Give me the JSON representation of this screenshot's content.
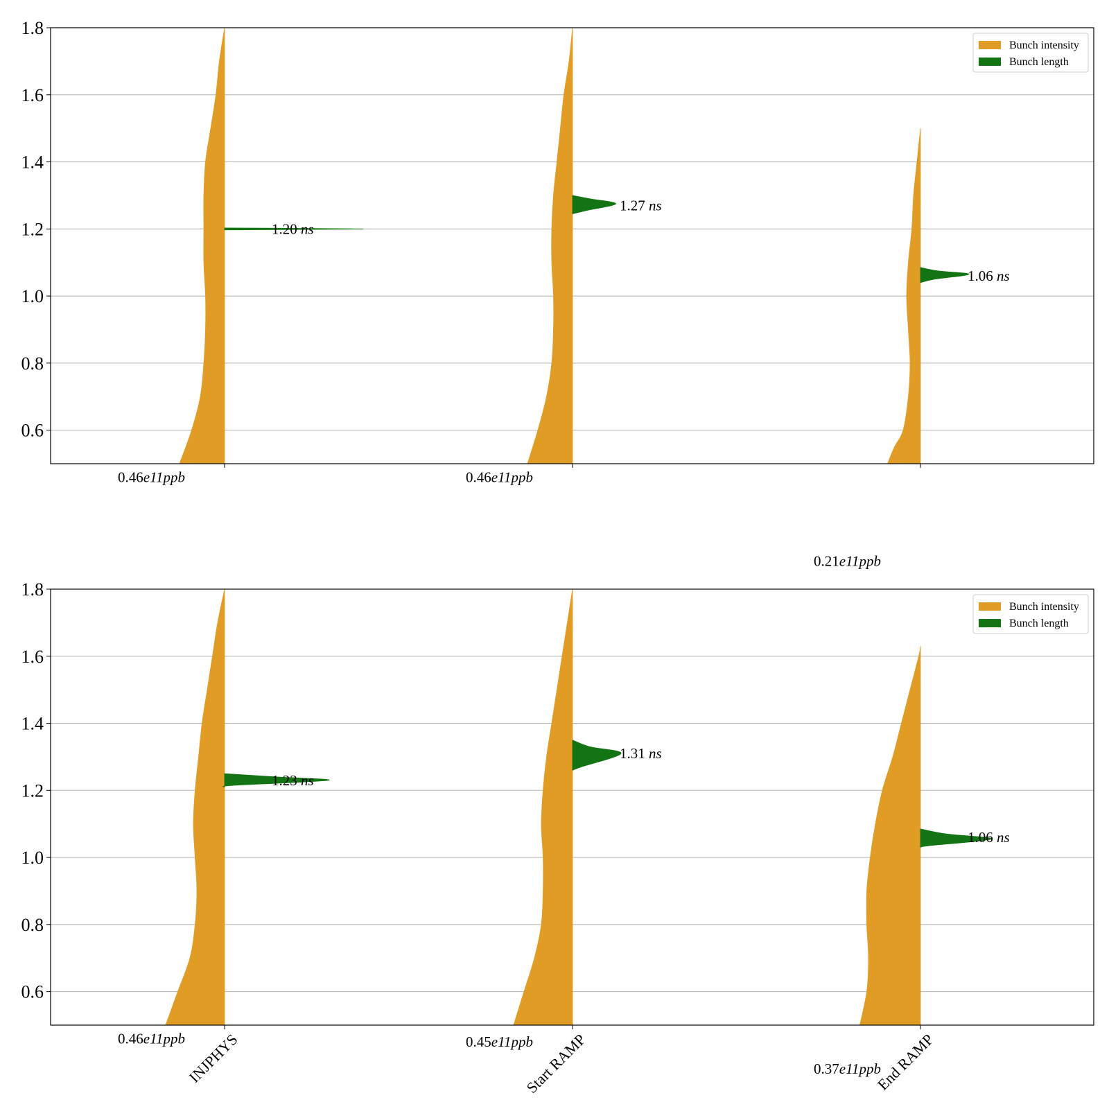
{
  "colors": {
    "intensity": "#e09c24",
    "length": "#127412",
    "grid": "#b0b0b0",
    "axis": "#000000"
  },
  "chart_data": [
    {
      "type": "violin",
      "ylim": [
        0.5,
        1.8
      ],
      "yticks": [
        0.6,
        0.8,
        1.0,
        1.2,
        1.4,
        1.6,
        1.8
      ],
      "grid": "horizontal",
      "legend_position": "top-right",
      "legend": [
        "Bunch intensity",
        "Bunch length"
      ],
      "categories": [
        "",
        "",
        ""
      ],
      "series": [
        {
          "name": "Bunch intensity",
          "side": "left",
          "profiles": [
            [
              [
                0.5,
                0.26
              ],
              [
                0.6,
                0.19
              ],
              [
                0.7,
                0.14
              ],
              [
                0.8,
                0.12
              ],
              [
                0.9,
                0.11
              ],
              [
                1.0,
                0.11
              ],
              [
                1.1,
                0.12
              ],
              [
                1.2,
                0.12
              ],
              [
                1.3,
                0.12
              ],
              [
                1.4,
                0.11
              ],
              [
                1.5,
                0.08
              ],
              [
                1.6,
                0.05
              ],
              [
                1.7,
                0.03
              ],
              [
                1.8,
                0.0
              ]
            ],
            [
              [
                0.5,
                0.26
              ],
              [
                0.6,
                0.2
              ],
              [
                0.7,
                0.15
              ],
              [
                0.8,
                0.12
              ],
              [
                0.9,
                0.11
              ],
              [
                1.0,
                0.11
              ],
              [
                1.1,
                0.12
              ],
              [
                1.2,
                0.12
              ],
              [
                1.3,
                0.11
              ],
              [
                1.4,
                0.09
              ],
              [
                1.5,
                0.07
              ],
              [
                1.6,
                0.05
              ],
              [
                1.7,
                0.02
              ],
              [
                1.8,
                0.0
              ]
            ],
            [
              [
                0.5,
                0.19
              ],
              [
                0.55,
                0.15
              ],
              [
                0.6,
                0.1
              ],
              [
                0.7,
                0.07
              ],
              [
                0.8,
                0.06
              ],
              [
                0.9,
                0.07
              ],
              [
                1.0,
                0.08
              ],
              [
                1.1,
                0.07
              ],
              [
                1.2,
                0.05
              ],
              [
                1.3,
                0.04
              ],
              [
                1.4,
                0.02
              ],
              [
                1.5,
                0.0
              ]
            ]
          ]
        },
        {
          "name": "Bunch length",
          "side": "right",
          "profiles": [
            [
              [
                1.197,
                0.0
              ],
              [
                1.2,
                0.8
              ],
              [
                1.203,
                0.0
              ]
            ],
            [
              [
                1.245,
                0.0
              ],
              [
                1.255,
                0.08
              ],
              [
                1.275,
                0.25
              ],
              [
                1.29,
                0.1
              ],
              [
                1.3,
                0.0
              ]
            ],
            [
              [
                1.04,
                0.0
              ],
              [
                1.05,
                0.08
              ],
              [
                1.065,
                0.28
              ],
              [
                1.075,
                0.1
              ],
              [
                1.085,
                0.0
              ]
            ]
          ]
        }
      ],
      "annotations": [
        {
          "category": 0,
          "y": 1.2,
          "num": "1.20",
          "unit": "ns"
        },
        {
          "category": 1,
          "y": 1.27,
          "num": "1.27",
          "unit": "ns"
        },
        {
          "category": 2,
          "y": 1.06,
          "num": "1.06",
          "unit": "ns"
        }
      ],
      "intensity_labels": [
        {
          "category": 0,
          "y": 0.46,
          "num": "0.46",
          "exp": "e11",
          "unit": "ppb"
        },
        {
          "category": 1,
          "y": 0.46,
          "num": "0.46",
          "exp": "e11",
          "unit": "ppb"
        },
        {
          "category": 2,
          "y": 0.21,
          "num": "0.21",
          "exp": "e11",
          "unit": "ppb"
        }
      ]
    },
    {
      "type": "violin",
      "ylim": [
        0.5,
        1.8
      ],
      "yticks": [
        0.6,
        0.8,
        1.0,
        1.2,
        1.4,
        1.6,
        1.8
      ],
      "grid": "horizontal",
      "legend_position": "top-right",
      "legend": [
        "Bunch intensity",
        "Bunch length"
      ],
      "categories": [
        "INJPHYS",
        "Start RAMP",
        "End RAMP"
      ],
      "series": [
        {
          "name": "Bunch intensity",
          "side": "left",
          "profiles": [
            [
              [
                0.5,
                0.34
              ],
              [
                0.6,
                0.27
              ],
              [
                0.7,
                0.2
              ],
              [
                0.8,
                0.17
              ],
              [
                0.9,
                0.16
              ],
              [
                1.0,
                0.17
              ],
              [
                1.1,
                0.18
              ],
              [
                1.2,
                0.17
              ],
              [
                1.3,
                0.15
              ],
              [
                1.4,
                0.13
              ],
              [
                1.5,
                0.1
              ],
              [
                1.6,
                0.07
              ],
              [
                1.7,
                0.04
              ],
              [
                1.8,
                0.0
              ]
            ],
            [
              [
                0.5,
                0.34
              ],
              [
                0.6,
                0.28
              ],
              [
                0.7,
                0.22
              ],
              [
                0.8,
                0.18
              ],
              [
                0.9,
                0.17
              ],
              [
                1.0,
                0.17
              ],
              [
                1.1,
                0.18
              ],
              [
                1.2,
                0.17
              ],
              [
                1.3,
                0.15
              ],
              [
                1.4,
                0.12
              ],
              [
                1.5,
                0.09
              ],
              [
                1.6,
                0.06
              ],
              [
                1.7,
                0.03
              ],
              [
                1.8,
                0.0
              ]
            ],
            [
              [
                0.5,
                0.35
              ],
              [
                0.6,
                0.31
              ],
              [
                0.7,
                0.3
              ],
              [
                0.8,
                0.31
              ],
              [
                0.9,
                0.31
              ],
              [
                1.0,
                0.29
              ],
              [
                1.1,
                0.26
              ],
              [
                1.2,
                0.22
              ],
              [
                1.3,
                0.16
              ],
              [
                1.4,
                0.11
              ],
              [
                1.5,
                0.06
              ],
              [
                1.6,
                0.01
              ],
              [
                1.63,
                0.0
              ]
            ]
          ]
        },
        {
          "name": "Bunch length",
          "side": "right",
          "profiles": [
            [
              [
                1.21,
                0.0
              ],
              [
                1.215,
                0.05
              ],
              [
                1.23,
                0.6
              ],
              [
                1.24,
                0.3
              ],
              [
                1.25,
                0.0
              ]
            ],
            [
              [
                1.26,
                0.0
              ],
              [
                1.27,
                0.05
              ],
              [
                1.31,
                0.28
              ],
              [
                1.33,
                0.1
              ],
              [
                1.35,
                0.0
              ]
            ],
            [
              [
                1.03,
                0.0
              ],
              [
                1.035,
                0.05
              ],
              [
                1.055,
                0.41
              ],
              [
                1.07,
                0.15
              ],
              [
                1.085,
                0.0
              ]
            ]
          ]
        }
      ],
      "annotations": [
        {
          "category": 0,
          "y": 1.23,
          "num": "1.23",
          "unit": "ns"
        },
        {
          "category": 1,
          "y": 1.31,
          "num": "1.31",
          "unit": "ns"
        },
        {
          "category": 2,
          "y": 1.06,
          "num": "1.06",
          "unit": "ns"
        }
      ],
      "intensity_labels": [
        {
          "category": 0,
          "y": 0.46,
          "num": "0.46",
          "exp": "e11",
          "unit": "ppb"
        },
        {
          "category": 1,
          "y": 0.45,
          "num": "0.45",
          "exp": "e11",
          "unit": "ppb"
        },
        {
          "category": 2,
          "y": 0.37,
          "num": "0.37",
          "exp": "e11",
          "unit": "ppb"
        }
      ]
    }
  ]
}
